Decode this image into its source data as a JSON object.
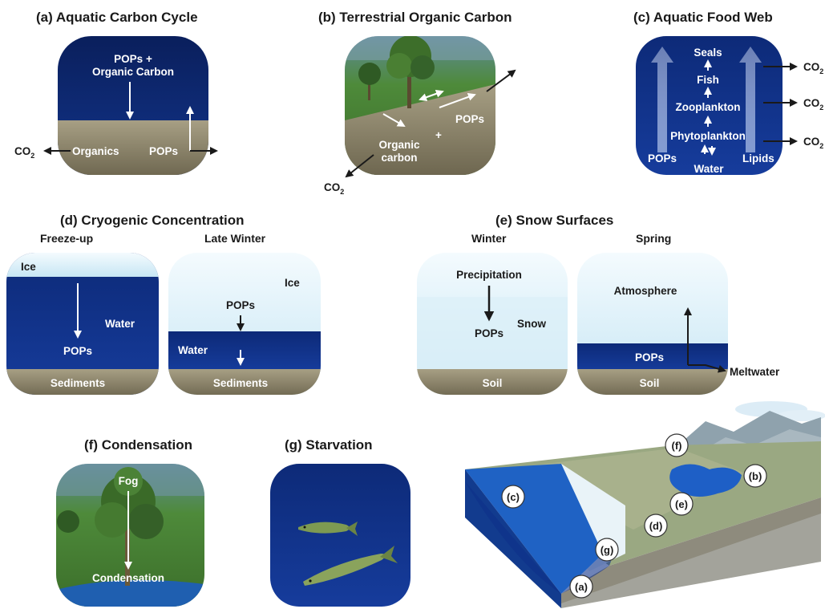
{
  "panels": {
    "a": {
      "title": "(a) Aquatic Carbon Cycle",
      "pops_organic": "POPs +",
      "organic_carbon": "Organic Carbon",
      "organics": "Organics",
      "pops": "POPs",
      "co2": "CO",
      "sub2": "2"
    },
    "b": {
      "title": "(b) Terrestrial Organic Carbon",
      "pops": "POPs",
      "plus": "+",
      "organic": "Organic",
      "carbon": "carbon",
      "co2": "CO",
      "sub2": "2"
    },
    "c": {
      "title": "(c) Aquatic Food Web",
      "seals": "Seals",
      "fish": "Fish",
      "zooplankton": "Zooplankton",
      "phytoplankton": "Phytoplankton",
      "pops": "POPs",
      "water": "Water",
      "lipids": "Lipids",
      "co2": "CO",
      "sub2": "2"
    },
    "d": {
      "title": "(d) Cryogenic Concentration",
      "freeze_up": "Freeze-up",
      "late_winter": "Late Winter",
      "ice": "Ice",
      "water": "Water",
      "pops": "POPs",
      "sediments": "Sediments"
    },
    "e": {
      "title": "(e) Snow Surfaces",
      "winter": "Winter",
      "spring": "Spring",
      "precipitation": "Precipitation",
      "pops": "POPs",
      "snow": "Snow",
      "soil": "Soil",
      "atmosphere": "Atmosphere",
      "meltwater": "Meltwater"
    },
    "f": {
      "title": "(f) Condensation",
      "fog": "Fog",
      "condensation": "Condensation"
    },
    "g": {
      "title": "(g) Starvation"
    }
  },
  "landscape": {
    "labels": [
      "(a)",
      "(b)",
      "(c)",
      "(d)",
      "(e)",
      "(f)",
      "(g)"
    ]
  }
}
